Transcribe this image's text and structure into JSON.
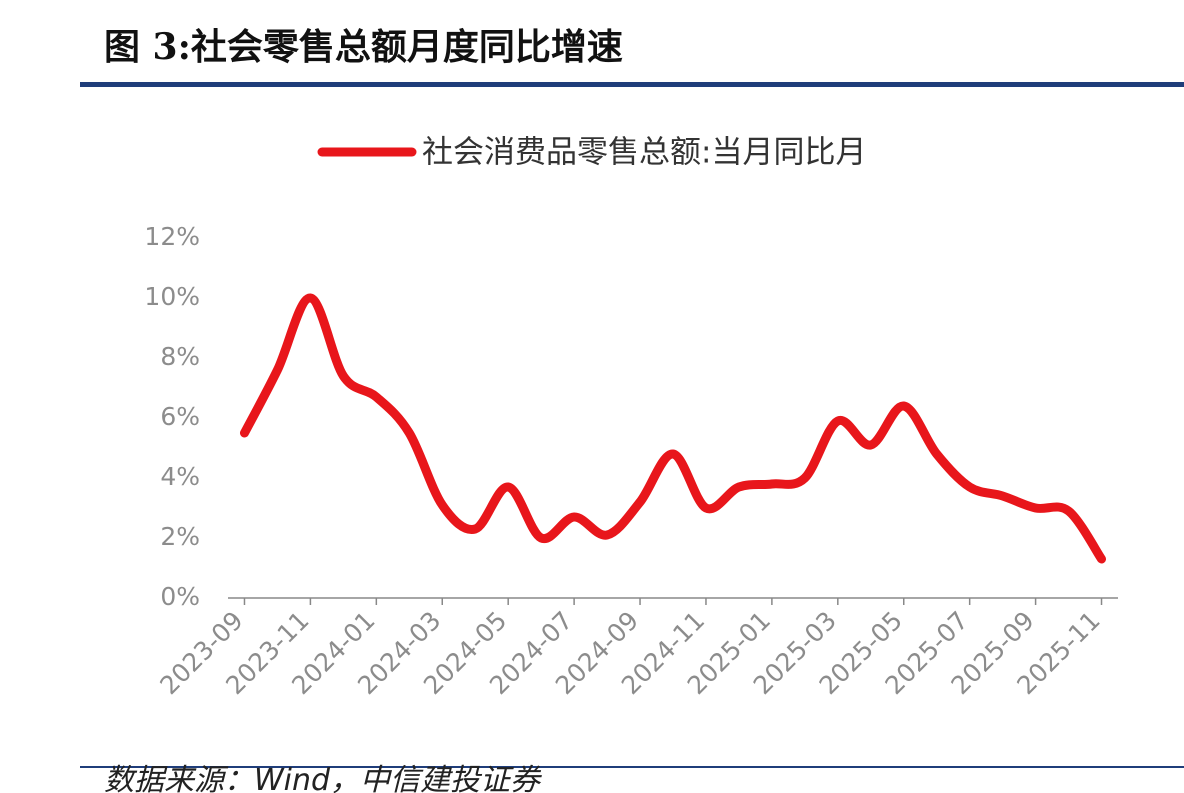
{
  "title": "图 3:社会零售总额月度同比增速",
  "chart_data": {
    "type": "line",
    "categories": [
      "2023-09",
      null,
      "2023-11",
      null,
      "2024-01",
      null,
      "2024-03",
      null,
      "2024-05",
      null,
      "2024-07",
      null,
      "2024-09",
      null,
      "2024-11",
      null,
      "2025-01",
      null,
      "2025-03",
      null,
      "2025-05",
      null,
      "2025-07",
      null,
      "2025-09",
      null,
      "2025-11"
    ],
    "series": [
      {
        "name": "社会消费品零售总额:当月同比月",
        "color": "#e8161b",
        "values": [
          5.5,
          7.6,
          10.0,
          7.4,
          6.7,
          5.5,
          3.1,
          2.3,
          3.7,
          2.0,
          2.7,
          2.1,
          3.2,
          4.8,
          3.0,
          3.7,
          3.8,
          4.0,
          5.9,
          5.1,
          6.4,
          4.8,
          3.7,
          3.4,
          3.0,
          2.9,
          1.3
        ]
      }
    ],
    "ylim": [
      0,
      12
    ],
    "yticks": [
      {
        "value": 0,
        "label": "0%"
      },
      {
        "value": 2,
        "label": "2%"
      },
      {
        "value": 4,
        "label": "4%"
      },
      {
        "value": 6,
        "label": "6%"
      },
      {
        "value": 8,
        "label": "8%"
      },
      {
        "value": 10,
        "label": "10%"
      },
      {
        "value": 12,
        "label": "12%"
      }
    ],
    "legend": "top"
  },
  "source": "数据来源：Wind，中信建投证券"
}
